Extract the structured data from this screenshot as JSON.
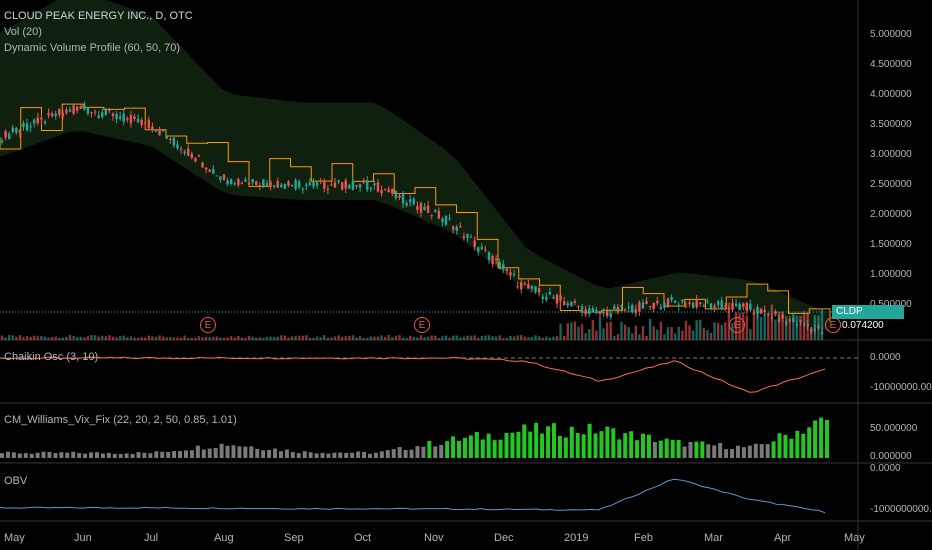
{
  "titles": {
    "main": "CLOUD PEAK ENERGY INC., D, OTC",
    "vol": "Vol (20)",
    "dvp": "Dynamic Volume Profile (60, 50, 70)",
    "chaikin": "Chaikin Osc (3, 10)",
    "williams": "CM_Williams_Vix_Fix (22, 20, 2, 50, 0.85, 1.01)",
    "obv": "OBV"
  },
  "price_axis": [
    "5.000000",
    "4.500000",
    "4.000000",
    "3.500000",
    "3.000000",
    "2.500000",
    "2.000000",
    "1.500000",
    "1.000000",
    "0.500000"
  ],
  "chaikin_axis": [
    "0.0000",
    "-10000000.0000"
  ],
  "williams_axis": [
    "50.000000",
    "0.000000"
  ],
  "obv_axis": [
    "0.0000",
    "-1000000000.0000"
  ],
  "months": [
    "May",
    "Jun",
    "Jul",
    "Aug",
    "Sep",
    "Oct",
    "Nov",
    "Dec",
    "2019",
    "Feb",
    "Mar",
    "Apr",
    "May"
  ],
  "last_price": {
    "symbol": "CLDP",
    "value": "0.074200"
  },
  "earnings": {
    "label": "E",
    "count": 4
  },
  "colors": {
    "up": "#26a69a",
    "down": "#ef5350",
    "profile": "#ff9800",
    "cloud": "#1b3a1b",
    "obv": "#5b9bd5",
    "green": "#22c722",
    "gray": "#7a7a7a"
  },
  "chart_data": [
    {
      "type": "line",
      "title": "CLOUD PEAK ENERGY INC., D, OTC",
      "x": [
        "May",
        "Jun",
        "Jul",
        "Aug",
        "Sep",
        "Oct",
        "Nov",
        "Dec",
        "2019",
        "Feb",
        "Mar",
        "Apr"
      ],
      "series": [
        {
          "values": [
            3.3,
            3.8,
            3.5,
            2.6,
            2.5,
            2.5,
            1.9,
            0.8,
            0.35,
            0.55,
            0.45,
            0.07
          ]
        }
      ],
      "ylim": [
        0,
        5.2
      ]
    },
    {
      "type": "line",
      "title": "Chaikin Osc (3, 10)",
      "x": [
        "May",
        "Jun",
        "Jul",
        "Aug",
        "Sep",
        "Oct",
        "Nov",
        "Dec",
        "2019",
        "Feb",
        "Mar",
        "Apr"
      ],
      "series": [
        {
          "values": [
            0,
            0,
            0,
            0,
            0,
            0,
            0,
            -500000,
            -4000000,
            -500000,
            -6000000,
            -2000000
          ]
        }
      ]
    },
    {
      "type": "bar",
      "title": "CM_Williams_Vix_Fix (22, 20, 2, 50, 0.85, 1.01)",
      "x": [
        "May",
        "Jun",
        "Jul",
        "Aug",
        "Sep",
        "Oct",
        "Nov",
        "Dec",
        "2019",
        "Feb",
        "Mar",
        "Apr"
      ],
      "series": [
        {
          "values": [
            10,
            10,
            10,
            28,
            12,
            10,
            35,
            55,
            55,
            30,
            20,
            75
          ]
        }
      ],
      "ylim": [
        0,
        90
      ]
    },
    {
      "type": "line",
      "title": "OBV",
      "x": [
        "May",
        "Jun",
        "Jul",
        "Aug",
        "Sep",
        "Oct",
        "Nov",
        "Dec",
        "2019",
        "Feb",
        "Mar",
        "Apr"
      ],
      "series": [
        {
          "values": [
            -900000000,
            -900000000,
            -900000000,
            -910000000,
            -920000000,
            -920000000,
            -930000000,
            -940000000,
            -950000000,
            -200000000,
            -700000000,
            -1000000000
          ]
        }
      ]
    }
  ]
}
